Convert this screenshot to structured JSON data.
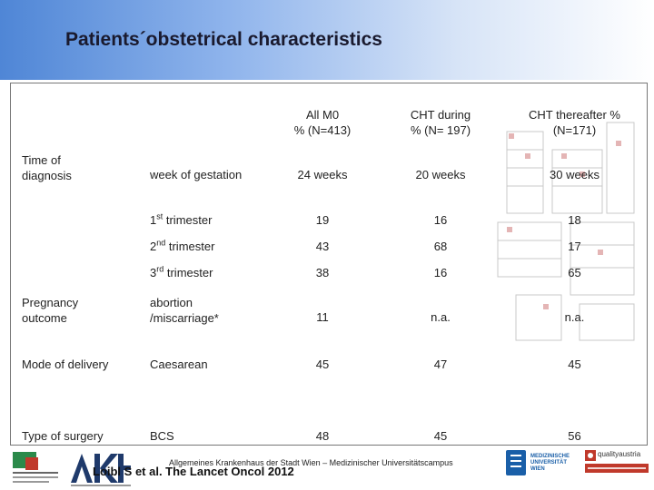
{
  "title": "Patients´obstetrical characteristics",
  "columns": [
    "All M0\n% (N=413)",
    "CHT during\n% (N= 197)",
    "CHT thereafter %\n(N=171)"
  ],
  "rows": [
    {
      "group": "Time of\ndiagnosis",
      "label": "week of gestation",
      "values": [
        "24 weeks",
        "20 weeks",
        "30 weeks"
      ]
    },
    {
      "group": "",
      "label_main": "1",
      "label_sup": "st",
      "label_rest": " trimester",
      "values": [
        "19",
        "16",
        "18"
      ]
    },
    {
      "group": "",
      "label_main": "2",
      "label_sup": "nd",
      "label_rest": " trimester",
      "values": [
        "43",
        "68",
        "17"
      ]
    },
    {
      "group": "",
      "label_main": "3",
      "label_sup": "rd",
      "label_rest": " trimester",
      "values": [
        "38",
        "16",
        "65"
      ]
    },
    {
      "group": "Pregnancy\noutcome",
      "label": "abortion\n/miscarriage*",
      "values": [
        "11",
        "n.a.",
        "n.a."
      ]
    },
    {
      "group": "Mode of delivery",
      "label": "Caesarean",
      "values": [
        "45",
        "47",
        "45"
      ]
    },
    {
      "group": "Type of surgery",
      "label": "BCS",
      "values": [
        "48",
        "45",
        "56"
      ]
    }
  ],
  "footer": {
    "hospital": "Allgemeines Krankenhaus der Stadt Wien – Medizinischer Universitätscampus",
    "citation": "Loibl S et al. The Lancet Oncol 2012",
    "logo_right_1": "MEDIZINISCHE UNIVERSITÄT WIEN",
    "logo_right_2": "qualityaustria"
  },
  "colors": {
    "header_start": "#4f86d6",
    "header_end": "#ffffff",
    "border": "#777777"
  }
}
